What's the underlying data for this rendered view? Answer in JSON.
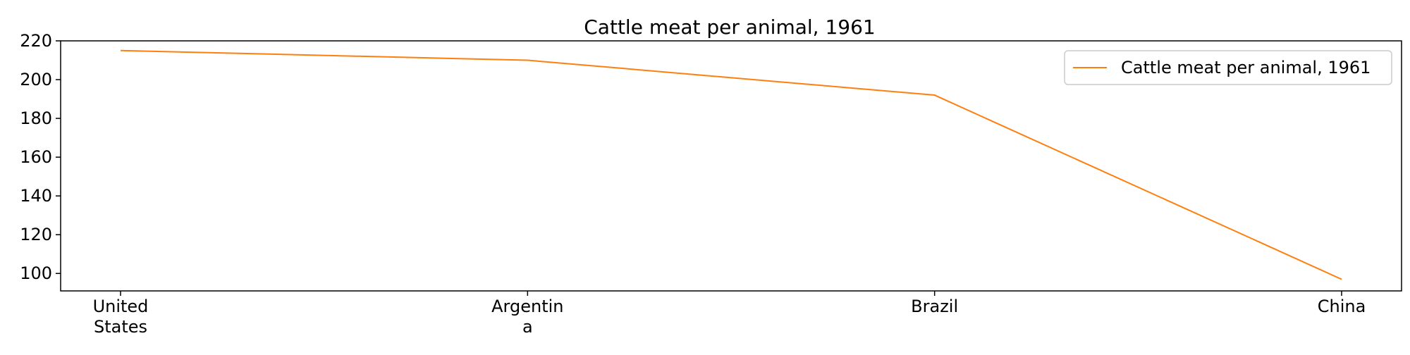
{
  "chart_data": {
    "type": "line",
    "title": "Cattle meat per animal, 1961",
    "xlabel": "",
    "ylabel": "",
    "categories": [
      "United States",
      "Argentina",
      "Brazil",
      "China"
    ],
    "category_labels": [
      [
        "United",
        "States"
      ],
      [
        "Argentin",
        "a"
      ],
      [
        "Brazil"
      ],
      [
        "China"
      ]
    ],
    "series": [
      {
        "name": "Cattle meat per animal, 1961",
        "values": [
          215,
          210,
          192,
          97
        ],
        "color": "#ff7f0e"
      }
    ],
    "yticks": [
      100,
      120,
      140,
      160,
      180,
      200,
      220
    ],
    "ylim": [
      91,
      220
    ],
    "grid": false,
    "legend": "top-right"
  }
}
